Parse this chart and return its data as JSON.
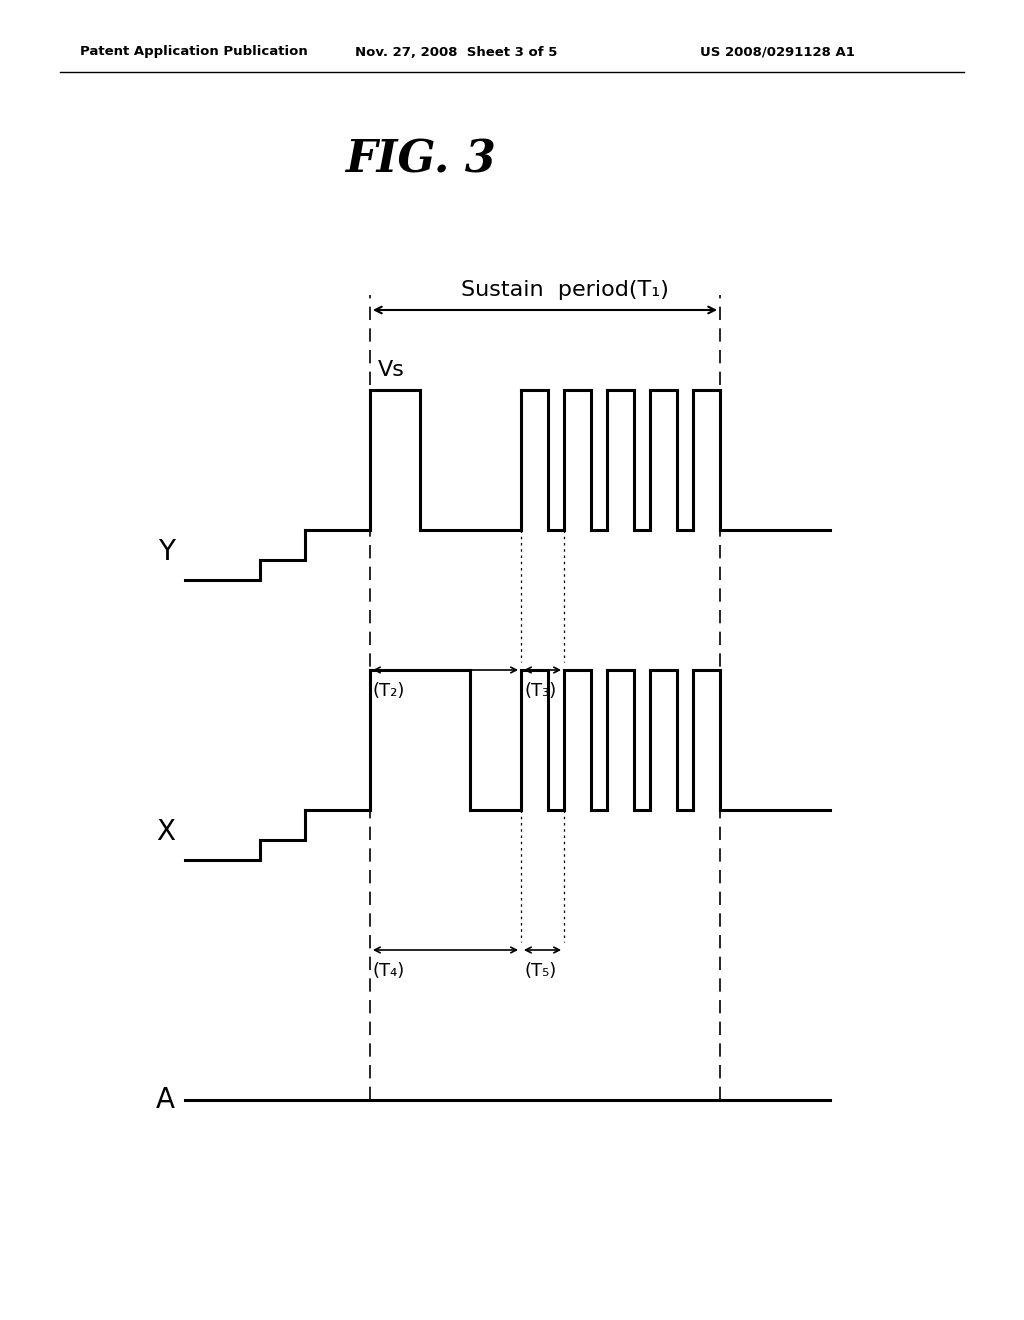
{
  "title": "FIG. 3",
  "header_left": "Patent Application Publication",
  "header_mid": "Nov. 27, 2008  Sheet 3 of 5",
  "header_right": "US 2008/0291128 A1",
  "bg_color": "#ffffff",
  "line_color": "#000000",
  "signal_Y_label": "Y",
  "signal_X_label": "X",
  "signal_A_label": "A",
  "Vs_label": "Vs",
  "sustain_label": "Sustain  period(T₁)",
  "T2_label": "(T₂)",
  "T3_label": "(T₃)",
  "T4_label": "(T₄)",
  "T5_label": "(T₅)",
  "lw": 2.2
}
